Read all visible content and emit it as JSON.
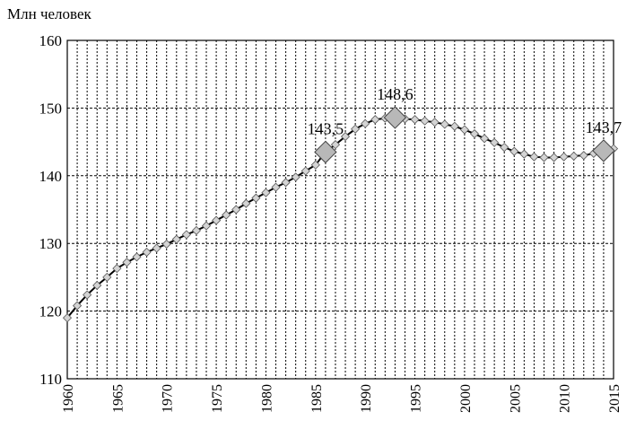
{
  "chart_data": {
    "type": "line",
    "title": "",
    "xlabel": "",
    "ylabel": "Млн человек",
    "ylim": [
      110,
      160
    ],
    "yticks": [
      110,
      120,
      130,
      140,
      150,
      160
    ],
    "xlim": [
      1960,
      2015
    ],
    "xtick_labels": [
      "1960",
      "1965",
      "1970",
      "1975",
      "1980",
      "1985",
      "1990",
      "1995",
      "2000",
      "2005",
      "2010",
      "2015"
    ],
    "grid": "horizontal dashed at y ticks; vertical dotted at every year",
    "series": [
      {
        "name": "",
        "x": [
          1960,
          1961,
          1962,
          1963,
          1964,
          1965,
          1966,
          1967,
          1968,
          1969,
          1970,
          1971,
          1972,
          1973,
          1974,
          1975,
          1976,
          1977,
          1978,
          1979,
          1980,
          1981,
          1982,
          1983,
          1984,
          1985,
          1986,
          1987,
          1988,
          1989,
          1990,
          1991,
          1992,
          1993,
          1994,
          1995,
          1996,
          1997,
          1998,
          1999,
          2000,
          2001,
          2002,
          2003,
          2004,
          2005,
          2006,
          2007,
          2008,
          2009,
          2010,
          2011,
          2012,
          2013,
          2014,
          2015
        ],
        "y": [
          119.0,
          120.8,
          122.4,
          123.8,
          125.0,
          126.3,
          127.2,
          128.0,
          128.7,
          129.3,
          129.9,
          130.6,
          131.3,
          131.9,
          132.6,
          133.4,
          134.2,
          135.0,
          135.9,
          136.7,
          137.5,
          138.3,
          139.0,
          139.8,
          140.7,
          141.6,
          143.5,
          144.6,
          145.8,
          146.9,
          147.7,
          148.3,
          148.5,
          148.6,
          148.4,
          148.3,
          148.1,
          147.9,
          147.6,
          147.3,
          146.8,
          146.2,
          145.5,
          144.9,
          144.2,
          143.6,
          143.2,
          142.8,
          142.7,
          142.7,
          142.8,
          142.9,
          143.0,
          143.3,
          143.7,
          144.0
        ]
      }
    ],
    "highlights": [
      {
        "x": 1986,
        "y": 143.5,
        "label": "143,5"
      },
      {
        "x": 1993,
        "y": 148.6,
        "label": "148,6"
      },
      {
        "x": 2014,
        "y": 143.7,
        "label": "143,7"
      }
    ],
    "marker_fill": "#d4d4d4",
    "highlight_fill": "#b8b8b8",
    "line_color": "#000000"
  }
}
